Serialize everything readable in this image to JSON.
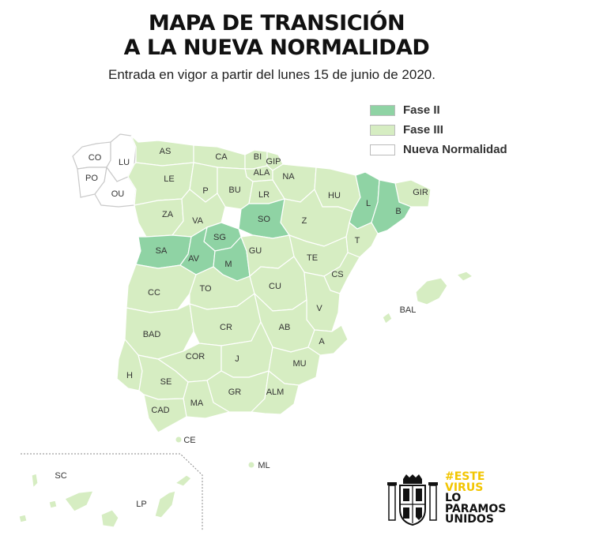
{
  "title": {
    "line1": "MAPA DE TRANSICIÓN",
    "line2": "A LA NUEVA NORMALIDAD"
  },
  "subtitle": "Entrada en vigor a partir del lunes 15 de junio de 2020.",
  "colors": {
    "fase2": "#8fd3a4",
    "fase3": "#d6edc2",
    "nueva": "#ffffff",
    "outline": "#c9c9c9"
  },
  "legend": [
    {
      "label": "Fase II",
      "color": "#8fd3a4"
    },
    {
      "label": "Fase III",
      "color": "#d6edc2"
    },
    {
      "label": "Nueva Normalidad",
      "color": "#ffffff"
    }
  ],
  "provinces": {
    "CO": "CO",
    "LU": "LU",
    "PO": "PO",
    "OU": "OU",
    "AS": "AS",
    "CA": "CA",
    "BI": "BI",
    "GIP": "GIP",
    "ALA": "ALA",
    "NA": "NA",
    "LE": "LE",
    "P": "P",
    "BU": "BU",
    "LR": "LR",
    "HU": "HU",
    "GIR": "GIR",
    "L": "L",
    "B": "B",
    "ZA": "ZA",
    "VA": "VA",
    "SO": "SO",
    "Z": "Z",
    "T": "T",
    "SG": "SG",
    "SA": "SA",
    "AV": "AV",
    "M": "M",
    "GU": "GU",
    "TE": "TE",
    "CS": "CS",
    "CC": "CC",
    "TO": "TO",
    "CU": "CU",
    "V": "V",
    "BAL": "BAL",
    "BAD": "BAD",
    "CR": "CR",
    "AB": "AB",
    "A": "A",
    "COR": "COR",
    "J": "J",
    "MU": "MU",
    "H": "H",
    "SE": "SE",
    "GR": "GR",
    "ALM": "ALM",
    "MA": "MA",
    "CAD": "CAD",
    "CE": "CE",
    "ML": "ML",
    "SC": "SC",
    "LP": "LP"
  },
  "logo": {
    "line1": "#ESTE",
    "line2": "VIRUS",
    "line3": "LO",
    "line4": "PARAMOS",
    "line5": "UNIDOS"
  }
}
